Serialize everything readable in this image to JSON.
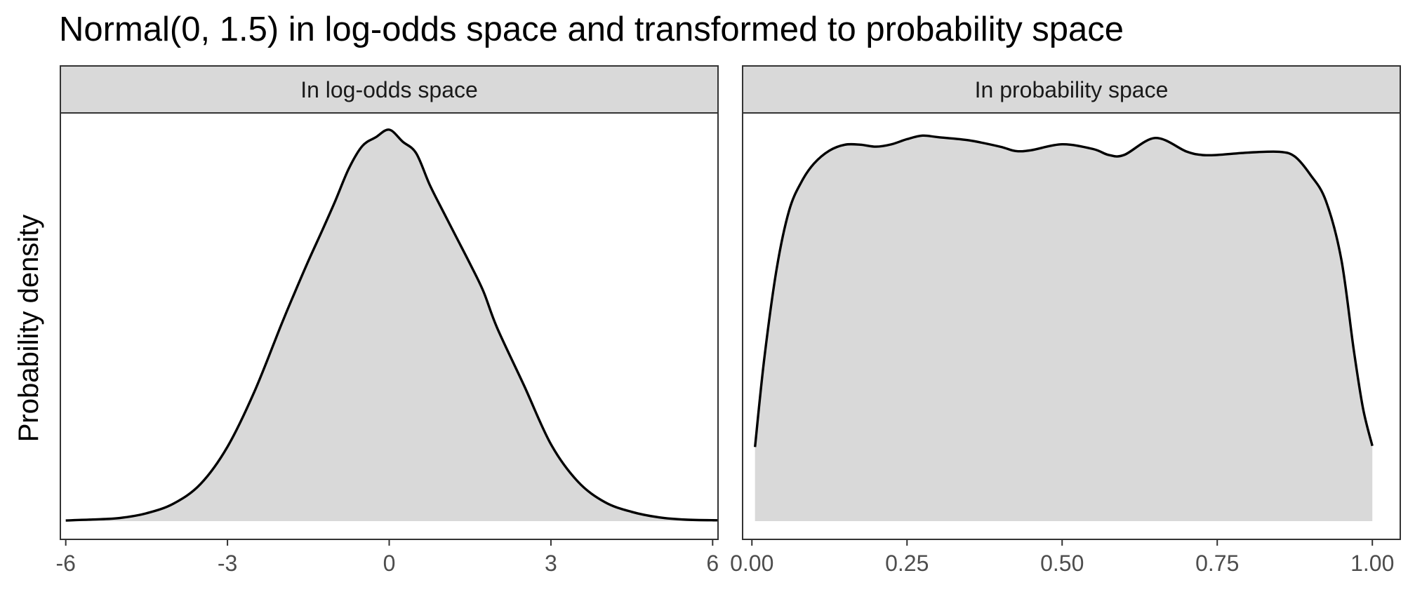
{
  "chart_data": {
    "title": "Normal(0, 1.5) in log-odds space and transformed to probability space",
    "ylabel": "Probability density",
    "colors": {
      "fill": "#d9d9d9",
      "line": "#000000",
      "strip": "#d9d9d9",
      "border": "#333333",
      "tick_text": "#4d4d4d"
    },
    "panels": [
      {
        "type": "area",
        "strip_label": "In log-odds space",
        "xlim": [
          -6.1,
          6.1
        ],
        "ylim": [
          0,
          0.29
        ],
        "ticks": [
          {
            "value": -6,
            "label": "-6"
          },
          {
            "value": -3,
            "label": "-3"
          },
          {
            "value": 0,
            "label": "0"
          },
          {
            "value": 3,
            "label": "3"
          },
          {
            "value": 6,
            "label": "6"
          }
        ],
        "x": [
          -6.0,
          -5.5,
          -5.0,
          -4.5,
          -4.0,
          -3.5,
          -3.0,
          -2.5,
          -2.0,
          -1.75,
          -1.5,
          -1.25,
          -1.0,
          -0.75,
          -0.5,
          -0.25,
          0.0,
          0.25,
          0.5,
          0.75,
          1.0,
          1.25,
          1.5,
          1.75,
          2.0,
          2.5,
          3.0,
          3.5,
          4.0,
          4.5,
          5.0,
          5.5,
          6.1
        ],
        "y": [
          0.0005,
          0.0012,
          0.0023,
          0.0058,
          0.0129,
          0.0273,
          0.0547,
          0.0953,
          0.1447,
          0.1684,
          0.1914,
          0.2132,
          0.2356,
          0.2593,
          0.2759,
          0.2824,
          0.288,
          0.2792,
          0.2707,
          0.2476,
          0.2279,
          0.2086,
          0.1893,
          0.1688,
          0.1424,
          0.0999,
          0.0566,
          0.0291,
          0.014,
          0.0068,
          0.0028,
          0.0011,
          0.0006
        ]
      },
      {
        "type": "area",
        "strip_label": "In probability space",
        "xlim": [
          -0.015,
          1.045
        ],
        "ylim": [
          0,
          1.0
        ],
        "ticks": [
          {
            "value": 0.0,
            "label": "0.00"
          },
          {
            "value": 0.25,
            "label": "0.25"
          },
          {
            "value": 0.5,
            "label": "0.50"
          },
          {
            "value": 0.75,
            "label": "0.75"
          },
          {
            "value": 1.0,
            "label": "1.00"
          }
        ],
        "x": [
          0.005,
          0.02,
          0.04,
          0.06,
          0.08,
          0.1,
          0.125,
          0.15,
          0.175,
          0.2,
          0.225,
          0.25,
          0.275,
          0.3,
          0.35,
          0.4,
          0.425,
          0.45,
          0.5,
          0.55,
          0.575,
          0.6,
          0.65,
          0.7,
          0.725,
          0.75,
          0.8,
          0.85,
          0.875,
          0.9,
          0.925,
          0.95,
          0.97,
          0.985,
          1.0
        ],
        "y": [
          0.188,
          0.413,
          0.641,
          0.788,
          0.861,
          0.907,
          0.94,
          0.955,
          0.955,
          0.95,
          0.956,
          0.969,
          0.978,
          0.974,
          0.966,
          0.95,
          0.939,
          0.941,
          0.956,
          0.944,
          0.929,
          0.929,
          0.972,
          0.938,
          0.929,
          0.929,
          0.935,
          0.937,
          0.925,
          0.879,
          0.813,
          0.664,
          0.435,
          0.286,
          0.191
        ]
      }
    ]
  }
}
